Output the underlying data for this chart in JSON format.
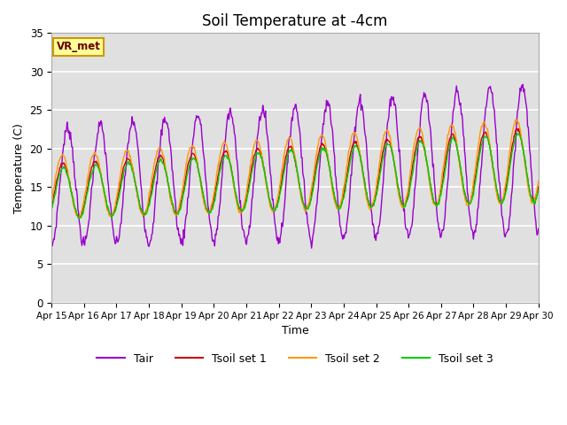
{
  "title": "Soil Temperature at -4cm",
  "xlabel": "Time",
  "ylabel": "Temperature (C)",
  "ylim": [
    0,
    35
  ],
  "xlim": [
    0,
    15
  ],
  "x_tick_labels": [
    "Apr 15",
    "Apr 16",
    "Apr 17",
    "Apr 18",
    "Apr 19",
    "Apr 20",
    "Apr 21",
    "Apr 22",
    "Apr 23",
    "Apr 24",
    "Apr 25",
    "Apr 26",
    "Apr 27",
    "Apr 28",
    "Apr 29",
    "Apr 30"
  ],
  "legend_labels": [
    "Tair",
    "Tsoil set 1",
    "Tsoil set 2",
    "Tsoil set 3"
  ],
  "colors": [
    "#9900cc",
    "#cc0000",
    "#ff9900",
    "#00cc00"
  ],
  "annotation_text": "VR_met",
  "bg_color": "#e0e0e0",
  "fig_color": "#ffffff",
  "title_fontsize": 12,
  "axis_fontsize": 9,
  "legend_fontsize": 9,
  "yticks": [
    0,
    5,
    10,
    15,
    20,
    25,
    30,
    35
  ]
}
